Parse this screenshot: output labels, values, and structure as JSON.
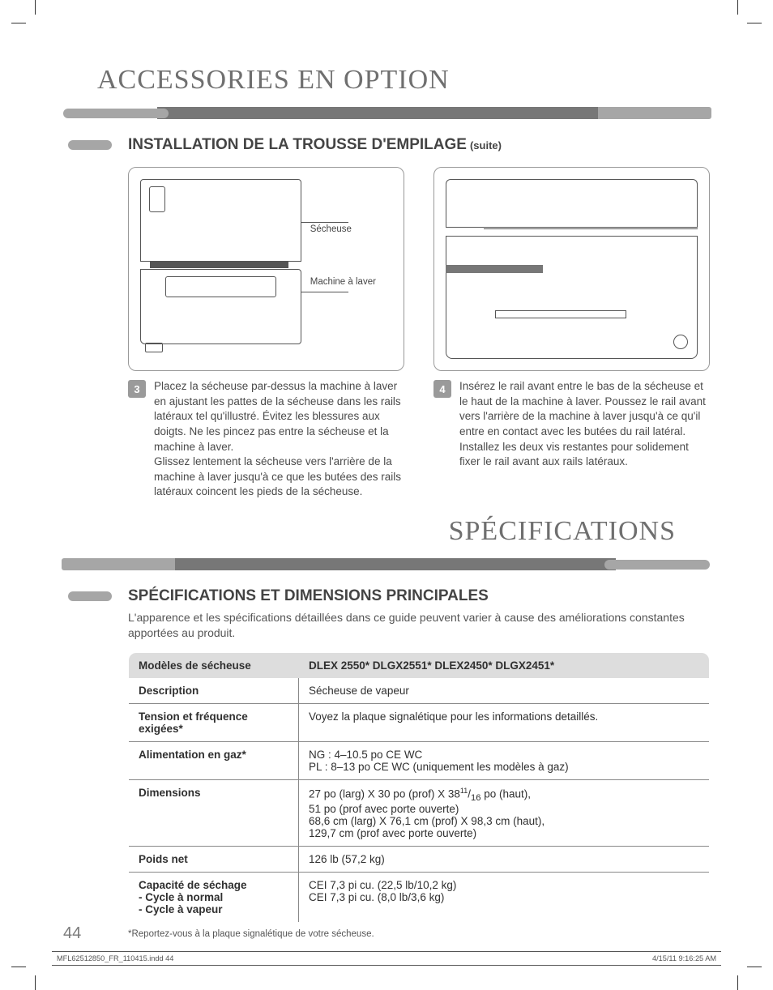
{
  "page": {
    "number": "44",
    "print_file": "MFL62512850_FR_110415.indd   44",
    "print_date": "4/15/11   9:16:25 AM"
  },
  "title_accessories": "ACCESSORIES EN OPTION",
  "title_specifications": "SPÉCIFICATIONS",
  "section1": {
    "heading": "INSTALLATION DE LA TROUSSE D'EMPILAGE",
    "suffix": "(suite)"
  },
  "section2": {
    "heading": "SPÉCIFICATIONS ET DIMENSIONS PRINCIPALES",
    "intro": "L'apparence et les spécifications détaillées dans ce guide peuvent varier à cause des améliorations constantes apportées au produit."
  },
  "figure_left": {
    "label_dryer": "Sécheuse",
    "label_washer": "Machine à laver"
  },
  "steps": {
    "s3": {
      "num": "3",
      "text": "Placez la sécheuse par-dessus la machine à laver en ajustant les pattes de la sécheuse dans les rails latéraux tel qu'illustré. Évitez les blessures aux doigts. Ne les pincez pas entre la sécheuse et la machine à laver.\nGlissez lentement la sécheuse vers l'arrière de la machine à laver jusqu'à ce que les butées des rails latéraux coincent les pieds de la sécheuse."
    },
    "s4": {
      "num": "4",
      "text": "Insérez le rail avant entre le bas de la sécheuse et le haut de la machine à laver. Poussez le rail avant vers l'arrière de la machine à laver jusqu'à ce qu'il entre en contact avec les butées du rail latéral. Installez les deux vis restantes pour solidement fixer le rail avant aux rails latéraux."
    }
  },
  "spec_table": {
    "header_left": "Modèles de sécheuse",
    "header_right": "DLEX 2550*  DLGX2551*  DLEX2450*  DLGX2451*",
    "rows": [
      {
        "label": "Description",
        "value": "Sécheuse de vapeur"
      },
      {
        "label": "Tension et fréquence exigées*",
        "value": "Voyez la plaque signalétique pour les informations detaillés."
      },
      {
        "label": "Alimentation en gaz*",
        "value": "NG  : 4–10.5 po CE WC\nPL : 8–13 po CE WC (uniquement les modèles à gaz)"
      },
      {
        "label": "Dimensions",
        "value_html": "27 po (larg) X 30 po (prof) X 38<sup>11</sup>/<sub>16</sub> po (haut),\n51 po (prof avec porte ouverte)\n68,6 cm (larg) X 76,1 cm (prof) X 98,3 cm (haut),\n129,7 cm (prof avec porte ouverte)"
      },
      {
        "label": "Poids net",
        "value": "126 lb (57,2 kg)"
      },
      {
        "label": "Capacité de séchage\n- Cycle à normal\n- Cycle à vapeur",
        "value": "CEI 7,3 pi cu. (22,5 lb/10,2 kg)\nCEI 7,3 pi cu. (8,0 lb/3,6 kg)"
      }
    ],
    "footnote": "*Reportez-vous à la plaque signalétique de votre sécheuse."
  },
  "style": {
    "title_color": "#6f6f6f",
    "title_fontsize_pt": 26,
    "heading_color": "#444444",
    "heading_fontsize_pt": 14,
    "body_color": "#4a4a4a",
    "body_fontsize_pt": 10,
    "pill_color": "#a6a6a6",
    "bar_color": "#777777",
    "step_badge_color": "#9a9a9a",
    "table_border_color": "#888888",
    "table_header_bg": "#dddddd",
    "background_color": "#ffffff"
  }
}
